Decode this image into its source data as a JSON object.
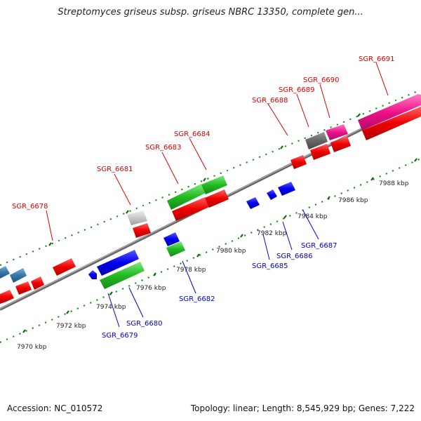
{
  "header": {
    "title": "Streptomyces griseus subsp. griseus NBRC 13350, complete gen..."
  },
  "footer": {
    "accession": "Accession: NC_010572",
    "summary": "Topology: linear; Length: 8,545,929 bp; Genes: 7,222"
  },
  "scale": {
    "ticks": [
      "7970 kbp",
      "7972 kbp",
      "7974 kbp",
      "7976 kbp",
      "7978 kbp",
      "7980 kbp",
      "7982 kbp",
      "7984 kbp",
      "7986 kbp",
      "7988 kbp"
    ]
  },
  "genes": {
    "forward": [
      "SGR_6678",
      "SGR_6681",
      "SGR_6683",
      "SGR_6684",
      "SGR_6688",
      "SGR_6689",
      "SGR_6690",
      "SGR_6691"
    ],
    "reverse": [
      "SGR_6679",
      "SGR_6680",
      "SGR_6682",
      "SGR_6685",
      "SGR_6686",
      "SGR_6687"
    ]
  },
  "colors": {
    "forward_label": "#dd0000",
    "reverse_label": "#0000cc",
    "cds_red": "#ee0000",
    "cds_green": "#22bb22",
    "cds_blue": "#0000ee",
    "cds_pink": "#ee1188",
    "cds_gray": "#666666",
    "cds_lightgray": "#c8c8c8",
    "cds_steel": "#3377aa",
    "tick_green": "#008800",
    "backbone": "#888888"
  }
}
